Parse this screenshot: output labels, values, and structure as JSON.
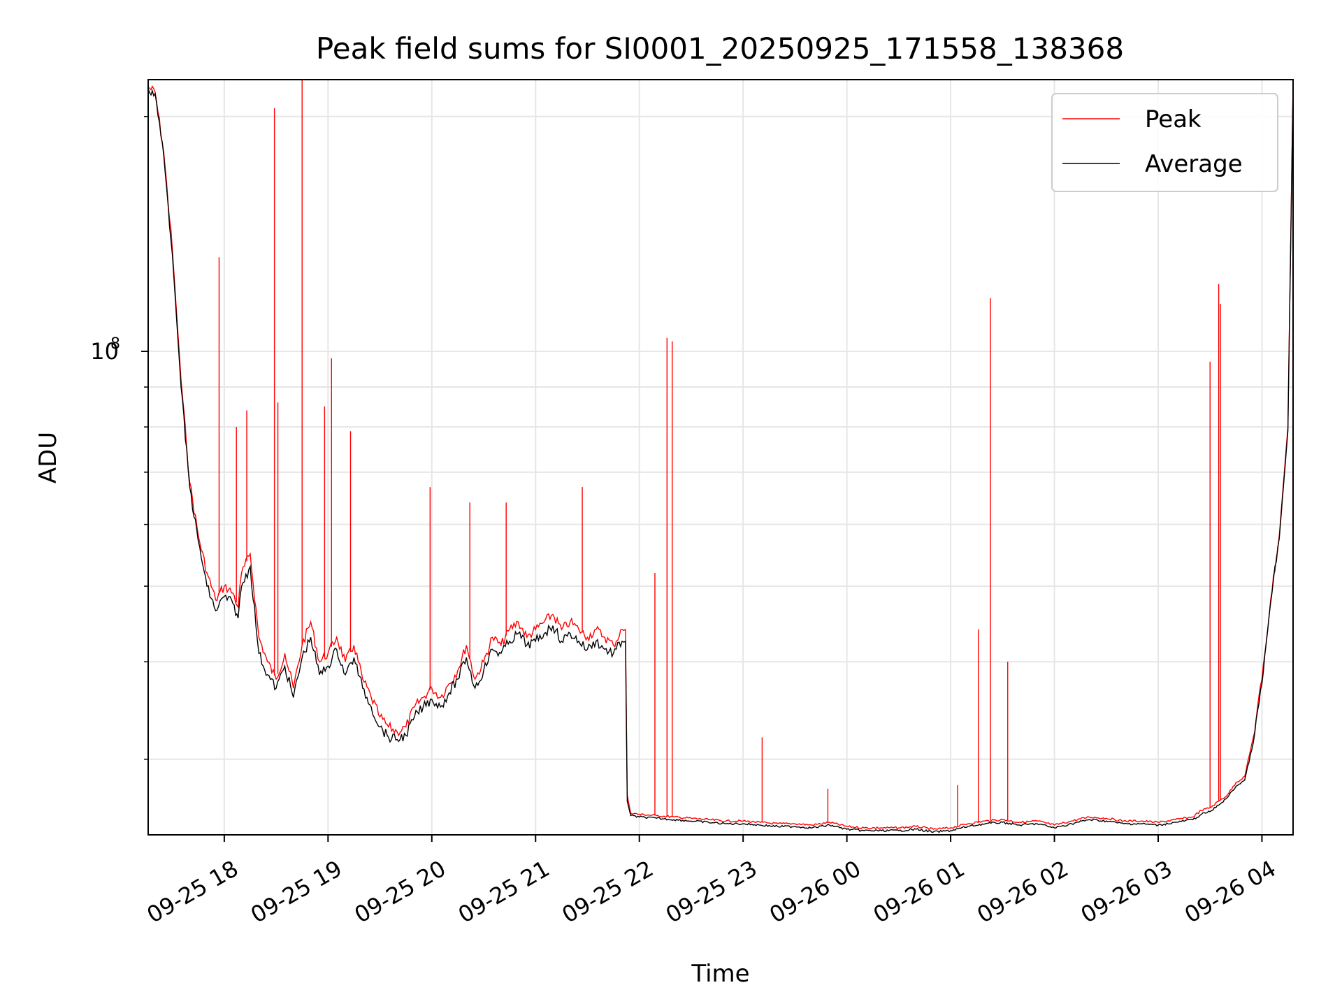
{
  "chart_data": {
    "type": "line",
    "title": "Peak field sums for SI0001_20250925_171558_138368",
    "xlabel": "Time",
    "ylabel": "ADU",
    "yscale": "log",
    "grid": true,
    "legend_placement": "top-right",
    "xlim": [
      "2025-09-25 17:16",
      "2025-09-26 04:18"
    ],
    "ylim": [
      24000000,
      223000000
    ],
    "x_ticks": [
      {
        "t": "2025-09-25 18:00",
        "label": "09-25 18"
      },
      {
        "t": "2025-09-25 19:00",
        "label": "09-25 19"
      },
      {
        "t": "2025-09-25 20:00",
        "label": "09-25 20"
      },
      {
        "t": "2025-09-25 21:00",
        "label": "09-25 21"
      },
      {
        "t": "2025-09-25 22:00",
        "label": "09-25 22"
      },
      {
        "t": "2025-09-25 23:00",
        "label": "09-25 23"
      },
      {
        "t": "2025-09-26 00:00",
        "label": "09-26 00"
      },
      {
        "t": "2025-09-26 01:00",
        "label": "09-26 01"
      },
      {
        "t": "2025-09-26 02:00",
        "label": "09-26 02"
      },
      {
        "t": "2025-09-26 03:00",
        "label": "09-26 03"
      },
      {
        "t": "2025-09-26 04:00",
        "label": "09-26 04"
      }
    ],
    "y_major_ticks": [
      {
        "value": 100000000,
        "base": "10",
        "exp": "8"
      }
    ],
    "y_minor_ticks": [
      30000000,
      40000000,
      50000000,
      60000000,
      70000000,
      80000000,
      90000000,
      200000000
    ],
    "series": [
      {
        "name": "Peak",
        "color": "#ff0000",
        "x": [
          "2025-09-25 17:16",
          "2025-09-25 17:20",
          "2025-09-25 17:25",
          "2025-09-25 17:30",
          "2025-09-25 17:35",
          "2025-09-25 17:40",
          "2025-09-25 17:45",
          "2025-09-25 17:50",
          "2025-09-25 17:55",
          "2025-09-25 18:00",
          "2025-09-25 18:05",
          "2025-09-25 18:08",
          "2025-09-25 18:10",
          "2025-09-25 18:15",
          "2025-09-25 18:20",
          "2025-09-25 18:25",
          "2025-09-25 18:30",
          "2025-09-25 18:35",
          "2025-09-25 18:40",
          "2025-09-25 18:45",
          "2025-09-25 18:50",
          "2025-09-25 18:55",
          "2025-09-25 19:00",
          "2025-09-25 19:05",
          "2025-09-25 19:10",
          "2025-09-25 19:15",
          "2025-09-25 19:20",
          "2025-09-25 19:25",
          "2025-09-25 19:30",
          "2025-09-25 19:35",
          "2025-09-25 19:40",
          "2025-09-25 19:45",
          "2025-09-25 19:50",
          "2025-09-25 19:55",
          "2025-09-25 20:00",
          "2025-09-25 20:05",
          "2025-09-25 20:10",
          "2025-09-25 20:15",
          "2025-09-25 20:20",
          "2025-09-25 20:25",
          "2025-09-25 20:30",
          "2025-09-25 20:35",
          "2025-09-25 20:40",
          "2025-09-25 20:45",
          "2025-09-25 20:50",
          "2025-09-25 20:55",
          "2025-09-25 21:00",
          "2025-09-25 21:05",
          "2025-09-25 21:10",
          "2025-09-25 21:15",
          "2025-09-25 21:20",
          "2025-09-25 21:25",
          "2025-09-25 21:30",
          "2025-09-25 21:35",
          "2025-09-25 21:40",
          "2025-09-25 21:45",
          "2025-09-25 21:50",
          "2025-09-25 21:52",
          "2025-09-25 21:53",
          "2025-09-25 21:55",
          "2025-09-25 22:00",
          "2025-09-25 22:10",
          "2025-09-25 22:20",
          "2025-09-25 22:30",
          "2025-09-25 22:40",
          "2025-09-25 22:50",
          "2025-09-25 23:00",
          "2025-09-25 23:10",
          "2025-09-25 23:20",
          "2025-09-25 23:30",
          "2025-09-25 23:40",
          "2025-09-25 23:50",
          "2025-09-26 00:00",
          "2025-09-26 00:10",
          "2025-09-26 00:20",
          "2025-09-26 00:30",
          "2025-09-26 00:40",
          "2025-09-26 00:50",
          "2025-09-26 01:00",
          "2025-09-26 01:10",
          "2025-09-26 01:20",
          "2025-09-26 01:30",
          "2025-09-26 01:40",
          "2025-09-26 01:50",
          "2025-09-26 02:00",
          "2025-09-26 02:10",
          "2025-09-26 02:20",
          "2025-09-26 02:30",
          "2025-09-26 02:40",
          "2025-09-26 02:50",
          "2025-09-26 03:00",
          "2025-09-26 03:10",
          "2025-09-26 03:20",
          "2025-09-26 03:25",
          "2025-09-26 03:30",
          "2025-09-26 03:35",
          "2025-09-26 03:40",
          "2025-09-26 03:45",
          "2025-09-26 03:50",
          "2025-09-26 03:55",
          "2025-09-26 04:00",
          "2025-09-26 04:05",
          "2025-09-26 04:10",
          "2025-09-26 04:15",
          "2025-09-26 04:18"
        ],
        "values": [
          218000000,
          215000000,
          180000000,
          135000000,
          92000000,
          68000000,
          58000000,
          52000000,
          48000000,
          50000000,
          49000000,
          47000000,
          52000000,
          55000000,
          43000000,
          40000000,
          38000000,
          41000000,
          37000000,
          42000000,
          45000000,
          40000000,
          41000000,
          43000000,
          40000000,
          42000000,
          38000000,
          36000000,
          34000000,
          33000000,
          32500000,
          33000000,
          35000000,
          36000000,
          37000000,
          36000000,
          37500000,
          39000000,
          42000000,
          38000000,
          40000000,
          43000000,
          42000000,
          44000000,
          45000000,
          43000000,
          44000000,
          45000000,
          46000000,
          44000000,
          45000000,
          44000000,
          43000000,
          44000000,
          43000000,
          42000000,
          44000000,
          44000000,
          27000000,
          25600000,
          25500000,
          25400000,
          25300000,
          25200000,
          25100000,
          25000000,
          25000000,
          24900000,
          24800000,
          24800000,
          24700000,
          24900000,
          24600000,
          24500000,
          24500000,
          24500000,
          24600000,
          24400000,
          24500000,
          24800000,
          25000000,
          25100000,
          24900000,
          25000000,
          24700000,
          25000000,
          25300000,
          25200000,
          25000000,
          25000000,
          24900000,
          25100000,
          25300000,
          25800000,
          26000000,
          26500000,
          27000000,
          28000000,
          28500000,
          32000000,
          38000000,
          48000000,
          58000000,
          80000000,
          220000000
        ]
      },
      {
        "name": "Average",
        "color": "#000000",
        "x": [
          "2025-09-25 17:16",
          "2025-09-25 17:20",
          "2025-09-25 17:25",
          "2025-09-25 17:30",
          "2025-09-25 17:35",
          "2025-09-25 17:40",
          "2025-09-25 17:45",
          "2025-09-25 17:50",
          "2025-09-25 17:55",
          "2025-09-25 18:00",
          "2025-09-25 18:05",
          "2025-09-25 18:08",
          "2025-09-25 18:10",
          "2025-09-25 18:15",
          "2025-09-25 18:20",
          "2025-09-25 18:25",
          "2025-09-25 18:30",
          "2025-09-25 18:35",
          "2025-09-25 18:40",
          "2025-09-25 18:45",
          "2025-09-25 18:50",
          "2025-09-25 18:55",
          "2025-09-25 19:00",
          "2025-09-25 19:05",
          "2025-09-25 19:10",
          "2025-09-25 19:15",
          "2025-09-25 19:20",
          "2025-09-25 19:25",
          "2025-09-25 19:30",
          "2025-09-25 19:35",
          "2025-09-25 19:40",
          "2025-09-25 19:45",
          "2025-09-25 19:50",
          "2025-09-25 19:55",
          "2025-09-25 20:00",
          "2025-09-25 20:05",
          "2025-09-25 20:10",
          "2025-09-25 20:15",
          "2025-09-25 20:20",
          "2025-09-25 20:25",
          "2025-09-25 20:30",
          "2025-09-25 20:35",
          "2025-09-25 20:40",
          "2025-09-25 20:45",
          "2025-09-25 20:50",
          "2025-09-25 20:55",
          "2025-09-25 21:00",
          "2025-09-25 21:05",
          "2025-09-25 21:10",
          "2025-09-25 21:15",
          "2025-09-25 21:20",
          "2025-09-25 21:25",
          "2025-09-25 21:30",
          "2025-09-25 21:35",
          "2025-09-25 21:40",
          "2025-09-25 21:45",
          "2025-09-25 21:50",
          "2025-09-25 21:52",
          "2025-09-25 21:53",
          "2025-09-25 21:55",
          "2025-09-25 22:00",
          "2025-09-25 22:10",
          "2025-09-25 22:20",
          "2025-09-25 22:30",
          "2025-09-25 22:40",
          "2025-09-25 22:50",
          "2025-09-25 23:00",
          "2025-09-25 23:10",
          "2025-09-25 23:20",
          "2025-09-25 23:30",
          "2025-09-25 23:40",
          "2025-09-25 23:50",
          "2025-09-26 00:00",
          "2025-09-26 00:10",
          "2025-09-26 00:20",
          "2025-09-26 00:30",
          "2025-09-26 00:40",
          "2025-09-26 00:50",
          "2025-09-26 01:00",
          "2025-09-26 01:10",
          "2025-09-26 01:20",
          "2025-09-26 01:30",
          "2025-09-26 01:40",
          "2025-09-26 01:50",
          "2025-09-26 02:00",
          "2025-09-26 02:10",
          "2025-09-26 02:20",
          "2025-09-26 02:30",
          "2025-09-26 02:40",
          "2025-09-26 02:50",
          "2025-09-26 03:00",
          "2025-09-26 03:10",
          "2025-09-26 03:20",
          "2025-09-26 03:25",
          "2025-09-26 03:30",
          "2025-09-26 03:35",
          "2025-09-26 03:40",
          "2025-09-26 03:45",
          "2025-09-26 03:50",
          "2025-09-26 03:55",
          "2025-09-26 04:00",
          "2025-09-26 04:05",
          "2025-09-26 04:10",
          "2025-09-26 04:15",
          "2025-09-26 04:18"
        ],
        "values": [
          217000000,
          214000000,
          178000000,
          133000000,
          90000000,
          67000000,
          57000000,
          50000000,
          46500000,
          48500000,
          47500000,
          45500000,
          50000000,
          53000000,
          41000000,
          38500000,
          37000000,
          39500000,
          36000000,
          40500000,
          43000000,
          38500000,
          39500000,
          41500000,
          38500000,
          40500000,
          37000000,
          35000000,
          33000000,
          32000000,
          31800000,
          32200000,
          34000000,
          35000000,
          35800000,
          35000000,
          36500000,
          38000000,
          40500000,
          37000000,
          39000000,
          41500000,
          41000000,
          42500000,
          43500000,
          42000000,
          42500000,
          43500000,
          44500000,
          42500000,
          43500000,
          42500000,
          41500000,
          42500000,
          41500000,
          41000000,
          42500000,
          42500000,
          26500000,
          25400000,
          25300000,
          25200000,
          25100000,
          25000000,
          24900000,
          24800000,
          24800000,
          24700000,
          24600000,
          24600000,
          24500000,
          24700000,
          24400000,
          24300000,
          24300000,
          24300000,
          24400000,
          24200000,
          24300000,
          24600000,
          24800000,
          24900000,
          24700000,
          24800000,
          24500000,
          24800000,
          25100000,
          25000000,
          24800000,
          24800000,
          24700000,
          24900000,
          25100000,
          25500000,
          25700000,
          26200000,
          26800000,
          27700000,
          28200000,
          31500000,
          37500000,
          47500000,
          57500000,
          79000000,
          218000000
        ]
      }
    ],
    "spikes": [
      {
        "series": "Peak",
        "t": "2025-09-25 17:57",
        "value": 132000000
      },
      {
        "series": "Peak",
        "t": "2025-09-25 18:07",
        "value": 80000000
      },
      {
        "series": "Peak",
        "t": "2025-09-25 18:13",
        "value": 84000000
      },
      {
        "series": "Peak",
        "t": "2025-09-25 18:29",
        "value": 205000000
      },
      {
        "series": "Peak",
        "t": "2025-09-25 18:31",
        "value": 86000000
      },
      {
        "series": "Peak",
        "t": "2025-09-25 18:45",
        "value": 226000000
      },
      {
        "series": "Peak",
        "t": "2025-09-25 18:58",
        "value": 85000000
      },
      {
        "series": "Peak",
        "t": "2025-09-25 19:02",
        "value": 98000000
      },
      {
        "series": "Peak",
        "t": "2025-09-25 19:13",
        "value": 79000000
      },
      {
        "series": "Peak",
        "t": "2025-09-25 19:59",
        "value": 67000000
      },
      {
        "series": "Peak",
        "t": "2025-09-25 20:22",
        "value": 64000000
      },
      {
        "series": "Peak",
        "t": "2025-09-25 20:43",
        "value": 64000000
      },
      {
        "series": "Peak",
        "t": "2025-09-25 21:27",
        "value": 67000000
      },
      {
        "series": "Peak",
        "t": "2025-09-25 22:09",
        "value": 52000000
      },
      {
        "series": "Peak",
        "t": "2025-09-25 22:16",
        "value": 104000000
      },
      {
        "series": "Peak",
        "t": "2025-09-25 22:19",
        "value": 103000000
      },
      {
        "series": "Peak",
        "t": "2025-09-25 23:11",
        "value": 32000000
      },
      {
        "series": "Peak",
        "t": "2025-09-25 23:49",
        "value": 27500000
      },
      {
        "series": "Peak",
        "t": "2025-09-26 01:04",
        "value": 27800000
      },
      {
        "series": "Peak",
        "t": "2025-09-26 01:16",
        "value": 44000000
      },
      {
        "series": "Peak",
        "t": "2025-09-26 01:23",
        "value": 117000000
      },
      {
        "series": "Peak",
        "t": "2025-09-26 01:33",
        "value": 40000000
      },
      {
        "series": "Peak",
        "t": "2025-09-26 03:30",
        "value": 97000000
      },
      {
        "series": "Peak",
        "t": "2025-09-26 03:35",
        "value": 122000000
      },
      {
        "series": "Peak",
        "t": "2025-09-26 03:36",
        "value": 115000000
      }
    ]
  }
}
